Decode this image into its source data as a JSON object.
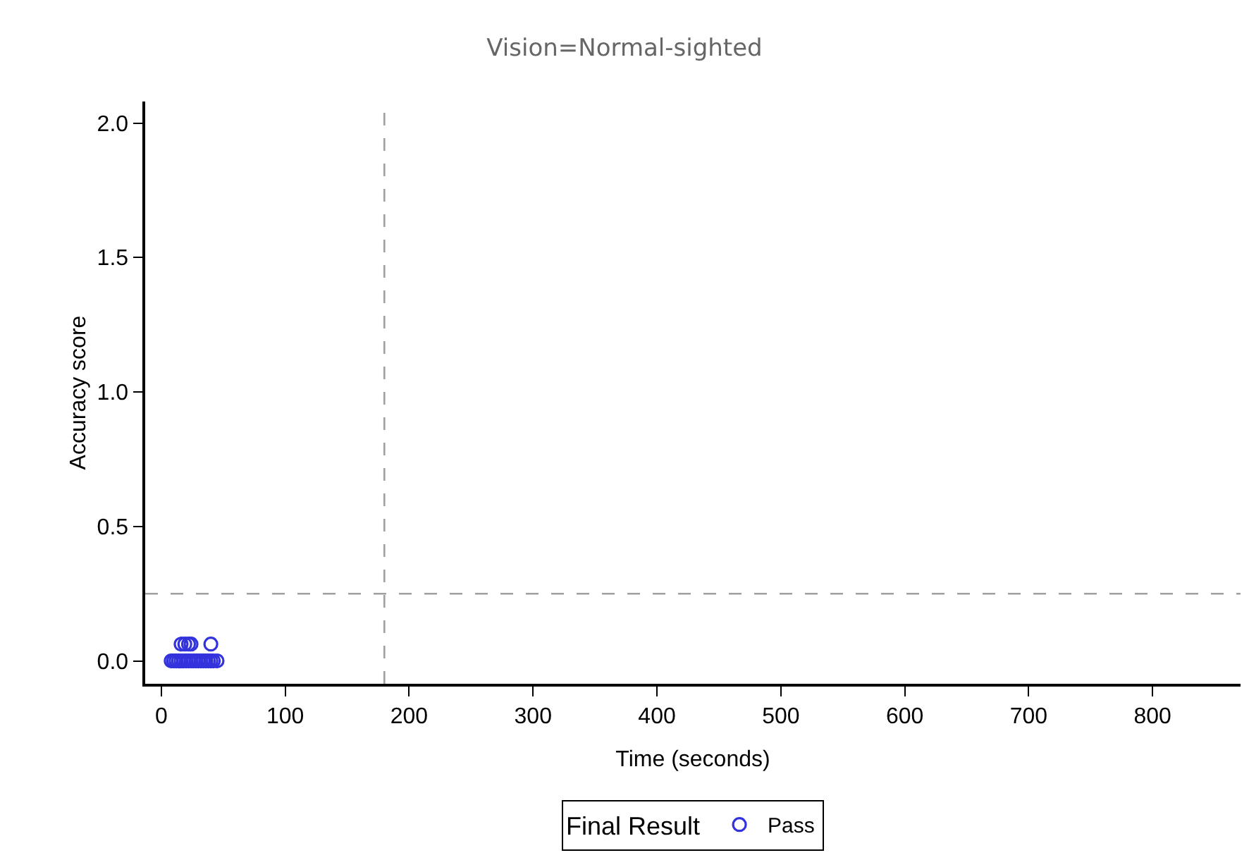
{
  "chart_data": {
    "type": "scatter",
    "title": "Vision=Normal-sighted",
    "xlabel": "Time (seconds)",
    "ylabel": "Accuracy score",
    "legend_title": "Final Result",
    "series": [
      {
        "name": "Pass",
        "color": "#3333dd",
        "x": [
          8,
          10,
          12,
          14,
          16,
          18,
          20,
          22,
          24,
          26,
          28,
          30,
          32,
          34,
          36,
          38,
          40,
          42,
          45,
          16,
          19,
          22,
          24,
          40
        ],
        "values": [
          0,
          0,
          0,
          0,
          0,
          0,
          0,
          0,
          0,
          0,
          0,
          0,
          0,
          0,
          0,
          0,
          0,
          0,
          0,
          0.0625,
          0.0625,
          0.0625,
          0.0625,
          0.0625
        ]
      }
    ],
    "marker": "circle",
    "xlim": [
      -13,
      871
    ],
    "xticks": [
      0,
      100,
      200,
      300,
      400,
      500,
      600,
      700,
      800
    ],
    "ylim": [
      -0.085,
      2.08
    ],
    "yticks": [
      {
        "value": 0,
        "label": "0.0"
      },
      {
        "value": 0.5,
        "label": "0.5"
      },
      {
        "value": 1,
        "label": "1.0"
      },
      {
        "value": 1.5,
        "label": "1.5"
      },
      {
        "value": 2,
        "label": "2.0"
      }
    ],
    "ref_lines": [
      {
        "axis": "x",
        "value": 180,
        "color": "#a0a0a0",
        "line_style": "dashed"
      },
      {
        "axis": "y",
        "value": 0.25,
        "color": "#a0a0a0",
        "line_style": "dashed"
      }
    ],
    "grid": false,
    "legend": "bottom"
  }
}
